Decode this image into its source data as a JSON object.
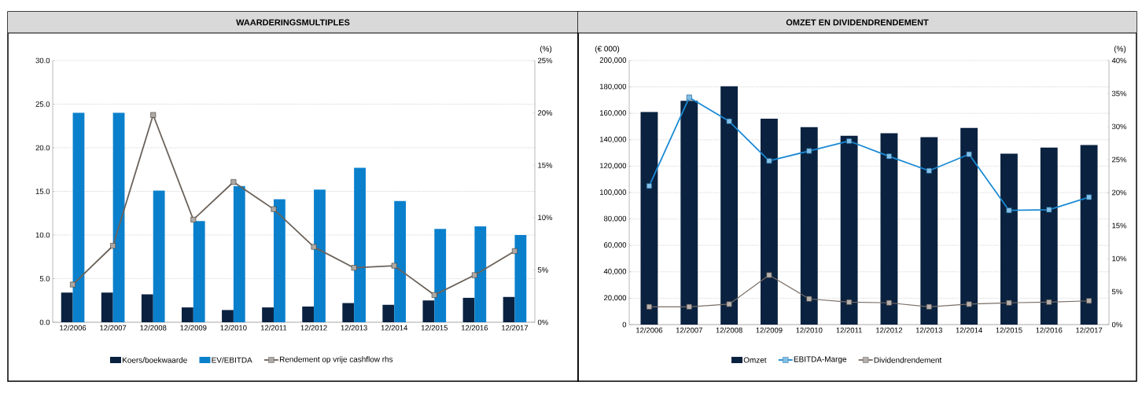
{
  "chart_data": [
    {
      "type": "bar",
      "title": "WAARDERINGSMULTIPLES",
      "y2label": "(%)",
      "categories": [
        "12/2006",
        "12/2007",
        "12/2008",
        "12/2009",
        "12/2010",
        "12/2011",
        "12/2012",
        "12/2013",
        "12/2014",
        "12/2015",
        "12/2016",
        "12/2017"
      ],
      "series": [
        {
          "name": "Koers/boekwaarde",
          "color": "#0a2240",
          "values": [
            3.4,
            3.4,
            3.2,
            1.7,
            1.4,
            1.7,
            1.8,
            2.2,
            2.0,
            2.5,
            2.8,
            2.9
          ]
        },
        {
          "name": "EV/EBITDA",
          "color": "#0a80cc",
          "values": [
            24.0,
            24.0,
            15.1,
            11.6,
            15.6,
            14.1,
            15.2,
            17.7,
            13.9,
            10.7,
            11.0,
            10.0
          ]
        },
        {
          "name": "Rendement op vrije cashflow rhs",
          "type": "line",
          "axis": "y2",
          "marker": "square",
          "color": "#6b625a",
          "values": [
            3.6,
            7.3,
            19.8,
            9.8,
            13.4,
            10.8,
            7.2,
            5.2,
            5.4,
            2.6,
            4.5,
            6.8
          ]
        }
      ],
      "ylim": [
        0,
        30
      ],
      "yticks": [
        {
          "value": 0,
          "label": "0.0"
        },
        {
          "value": 5,
          "label": "5.0"
        },
        {
          "value": 10,
          "label": "10.0"
        },
        {
          "value": 15,
          "label": "15.0"
        },
        {
          "value": 20,
          "label": "20.0"
        },
        {
          "value": 25,
          "label": "25.0"
        },
        {
          "value": 30,
          "label": "30.0"
        }
      ],
      "y2lim": [
        0,
        25
      ],
      "y2ticks": [
        {
          "value": 0,
          "label": "0%"
        },
        {
          "value": 5,
          "label": "5%"
        },
        {
          "value": 10,
          "label": "10%"
        },
        {
          "value": 15,
          "label": "15%"
        },
        {
          "value": 20,
          "label": "20%"
        },
        {
          "value": 25,
          "label": "25%"
        }
      ],
      "grid": "y",
      "legend": "bottom"
    },
    {
      "type": "bar",
      "title": "OMZET EN DIVIDENDRENDEMENT",
      "ylabel": "(€ 000)",
      "y2label": "(%)",
      "categories": [
        "12/2006",
        "12/2007",
        "12/2008",
        "12/2009",
        "12/2010",
        "12/2011",
        "12/2012",
        "12/2013",
        "12/2014",
        "12/2015",
        "12/2016",
        "12/2017"
      ],
      "series": [
        {
          "name": "Omzet",
          "color": "#0a2240",
          "values": [
            161000,
            169500,
            180500,
            156000,
            149500,
            143000,
            145000,
            142000,
            149000,
            129500,
            134000,
            136000
          ]
        },
        {
          "name": "EBITDA-Marge",
          "type": "line",
          "axis": "y2",
          "marker": "square",
          "color": "#1a8ad4",
          "values": [
            21.0,
            34.4,
            30.8,
            24.8,
            26.3,
            27.8,
            25.5,
            23.3,
            25.8,
            17.3,
            17.4,
            19.3
          ]
        },
        {
          "name": "Dividendrendement",
          "type": "line",
          "axis": "y2",
          "marker": "square",
          "color": "#7a6e66",
          "values": [
            2.7,
            2.7,
            3.1,
            7.5,
            3.9,
            3.4,
            3.3,
            2.7,
            3.1,
            3.3,
            3.4,
            3.6
          ]
        }
      ],
      "ylim": [
        0,
        200000
      ],
      "yticks": [
        {
          "value": 0,
          "label": "0"
        },
        {
          "value": 20000,
          "label": "20,000"
        },
        {
          "value": 40000,
          "label": "40,000"
        },
        {
          "value": 60000,
          "label": "60,000"
        },
        {
          "value": 80000,
          "label": "80,000"
        },
        {
          "value": 100000,
          "label": "100,000"
        },
        {
          "value": 120000,
          "label": "120,000"
        },
        {
          "value": 140000,
          "label": "140,000"
        },
        {
          "value": 160000,
          "label": "160,000"
        },
        {
          "value": 180000,
          "label": "180,000"
        },
        {
          "value": 200000,
          "label": "200,000"
        }
      ],
      "y2lim": [
        0,
        40
      ],
      "y2ticks": [
        {
          "value": 0,
          "label": "0%"
        },
        {
          "value": 5,
          "label": "5%"
        },
        {
          "value": 10,
          "label": "10%"
        },
        {
          "value": 15,
          "label": "15%"
        },
        {
          "value": 20,
          "label": "20%"
        },
        {
          "value": 25,
          "label": "25%"
        },
        {
          "value": 30,
          "label": "30%"
        },
        {
          "value": 35,
          "label": "35%"
        },
        {
          "value": 40,
          "label": "40%"
        }
      ],
      "grid": "y",
      "legend": "bottom"
    }
  ]
}
